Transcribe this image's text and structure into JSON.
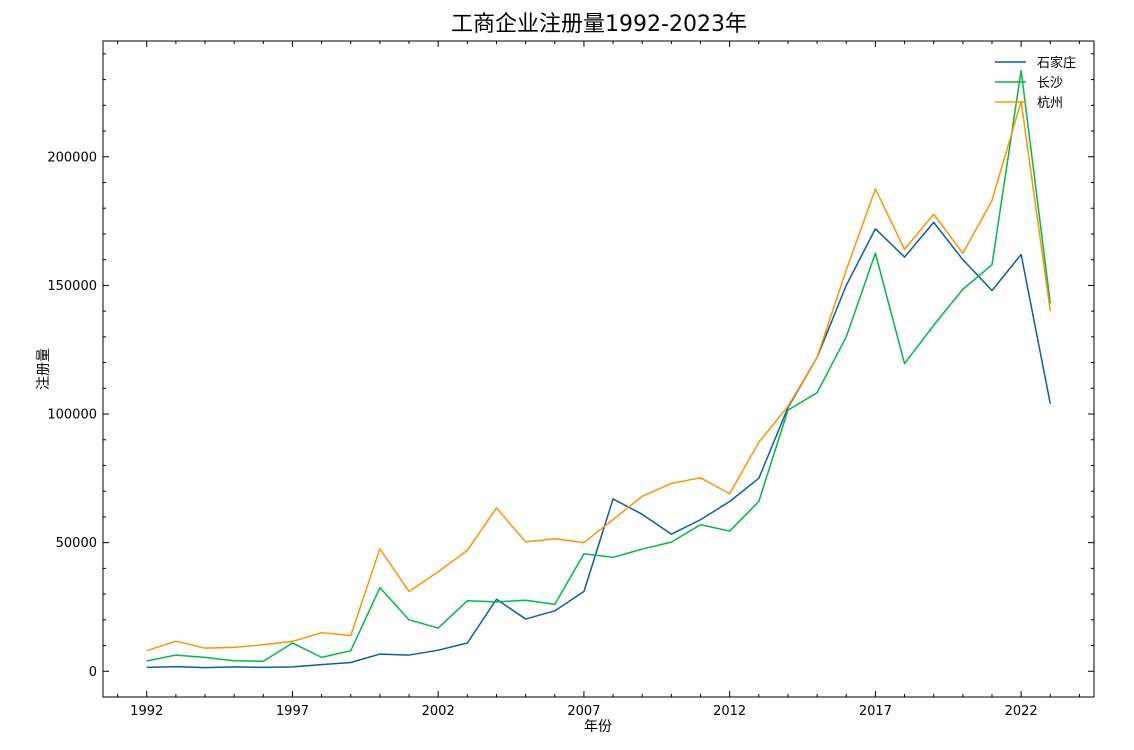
{
  "chart_data": {
    "type": "line",
    "title": "工商企业注册量1992-2023年",
    "xlabel": "年份",
    "ylabel": "注册量",
    "x": [
      1992,
      1993,
      1994,
      1995,
      1996,
      1997,
      1998,
      1999,
      2000,
      2001,
      2002,
      2003,
      2004,
      2005,
      2006,
      2007,
      2008,
      2009,
      2010,
      2011,
      2012,
      2013,
      2014,
      2015,
      2016,
      2017,
      2018,
      2019,
      2020,
      2021,
      2022,
      2023
    ],
    "xticks": [
      1992,
      1997,
      2002,
      2007,
      2012,
      2017,
      2022
    ],
    "yticks": [
      0,
      50000,
      100000,
      150000,
      200000
    ],
    "xlim": [
      1990.5,
      2024.5
    ],
    "ylim": [
      -10000,
      245000
    ],
    "legend_position": "top-right",
    "series": [
      {
        "name": "石家庄",
        "color": "#0c5da5",
        "values": [
          1500,
          1800,
          1400,
          1700,
          1500,
          1700,
          2600,
          3400,
          6700,
          6300,
          8200,
          11000,
          28000,
          20300,
          23500,
          31000,
          67000,
          61000,
          53300,
          58900,
          66000,
          75000,
          102500,
          122000,
          150000,
          172000,
          161000,
          174500,
          160000,
          148000,
          162000,
          104000
        ]
      },
      {
        "name": "长沙",
        "color": "#00b945",
        "values": [
          4000,
          6300,
          5400,
          4100,
          3900,
          11000,
          5400,
          8000,
          32500,
          20000,
          16800,
          27400,
          27000,
          27600,
          26000,
          45700,
          44300,
          47500,
          50200,
          57000,
          54500,
          66000,
          101500,
          108300,
          130000,
          162500,
          119600,
          134500,
          148500,
          158000,
          233500,
          143000
        ]
      },
      {
        "name": "杭州",
        "color": "#ff9500",
        "values": [
          8000,
          11700,
          9000,
          9300,
          10300,
          11600,
          15000,
          13900,
          47600,
          31000,
          38700,
          47000,
          63500,
          50300,
          51500,
          50000,
          59000,
          68000,
          73000,
          75200,
          69000,
          89000,
          103000,
          122000,
          156000,
          187500,
          164000,
          177700,
          162500,
          183000,
          221500,
          140000
        ]
      }
    ]
  }
}
